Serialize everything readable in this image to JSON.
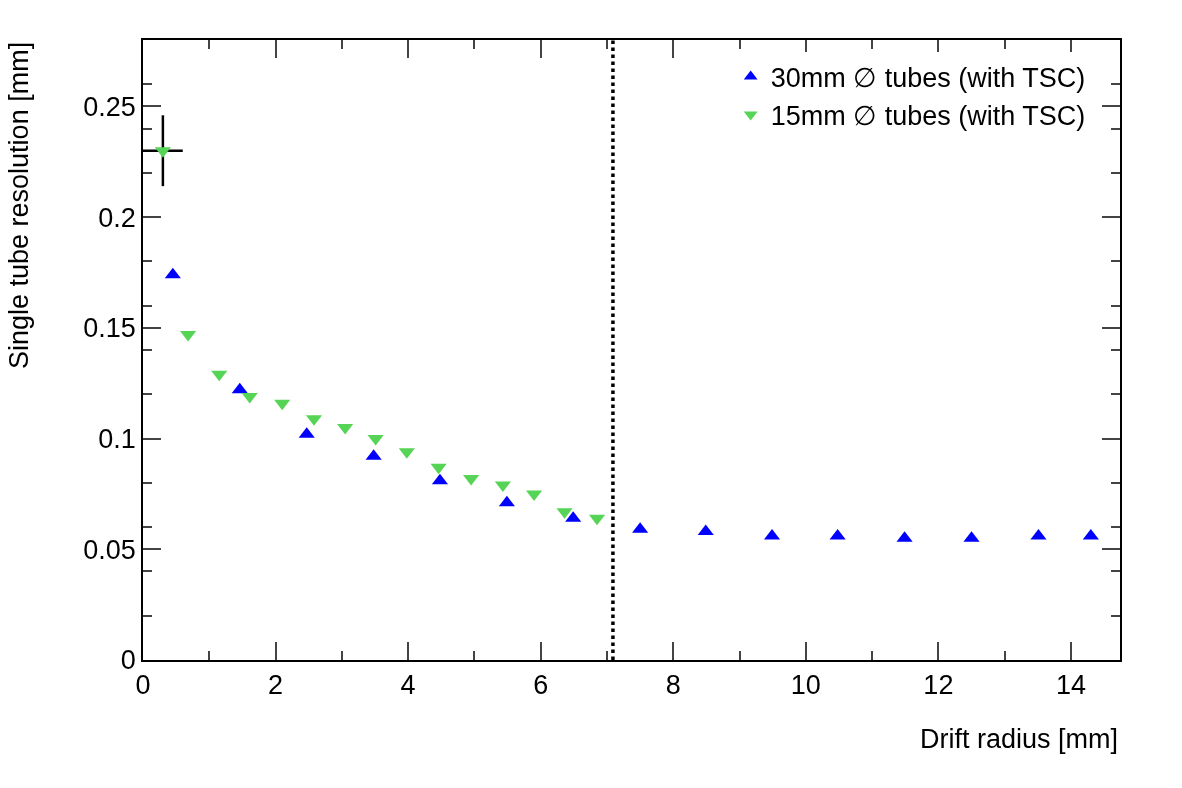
{
  "chart_data": {
    "type": "scatter",
    "xlabel": "Drift radius [mm]",
    "ylabel": "Single tube resolution [mm]",
    "xlim": [
      0,
      14.74
    ],
    "ylim": [
      0,
      0.28
    ],
    "xticks": [
      0,
      2,
      4,
      6,
      8,
      10,
      12,
      14
    ],
    "yticks": [
      0,
      0.05,
      0.1,
      0.15,
      0.2,
      0.25
    ],
    "legend": "top right",
    "grid": false,
    "series": [
      {
        "name": "30mm ∅ tubes (with TSC)",
        "color": "#0000ff",
        "marker": "triangle",
        "x": [
          0.45,
          1.46,
          2.47,
          3.48,
          4.48,
          5.49,
          6.49,
          7.5,
          8.49,
          9.49,
          10.48,
          11.49,
          12.5,
          13.51,
          14.3
        ],
        "values": [
          0.174,
          0.122,
          0.102,
          0.092,
          0.081,
          0.071,
          0.064,
          0.059,
          0.058,
          0.056,
          0.056,
          0.055,
          0.055,
          0.056,
          0.056
        ]
      },
      {
        "name": "15mm ∅ tubes (with TSC)",
        "color": "#55d455",
        "marker": "triangle-down",
        "x": [
          0.3,
          0.68,
          1.15,
          1.61,
          2.1,
          2.58,
          3.05,
          3.51,
          3.98,
          4.46,
          4.95,
          5.43,
          5.9,
          6.36,
          6.85
        ],
        "values": [
          0.23,
          0.147,
          0.129,
          0.119,
          0.116,
          0.109,
          0.105,
          0.1,
          0.094,
          0.087,
          0.082,
          0.079,
          0.075,
          0.067,
          0.064
        ],
        "errors": [
          0.016,
          null,
          null,
          null,
          null,
          null,
          null,
          null,
          null,
          null,
          null,
          null,
          null,
          null,
          null
        ],
        "xerrors": [
          0.3,
          null,
          null,
          null,
          null,
          null,
          null,
          null,
          null,
          null,
          null,
          null,
          null,
          null,
          null
        ]
      }
    ],
    "ref_lines": [
      {
        "axis": "x",
        "value": 7.09,
        "color": "#000000",
        "line_style": "dotted"
      }
    ]
  }
}
